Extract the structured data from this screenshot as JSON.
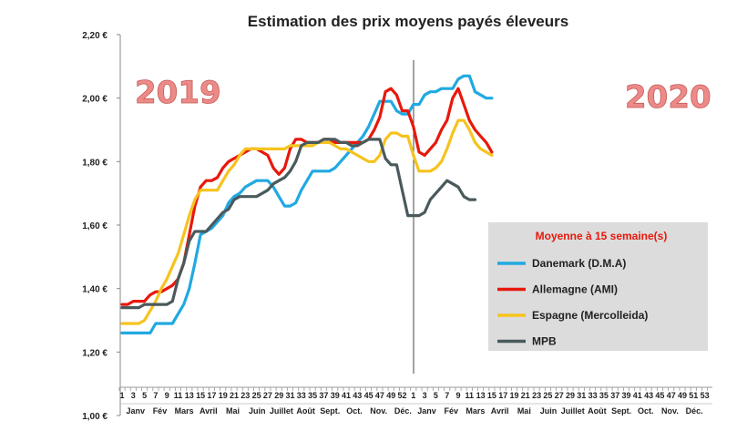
{
  "chart_data": {
    "type": "line",
    "title": "Estimation des prix moyens payés éleveurs",
    "ylim": [
      1.0,
      2.2
    ],
    "y_tick_labels": [
      "1,00 €",
      "1,20 €",
      "1,40 €",
      "1,60 €",
      "1,80 €",
      "2,00 €",
      "2,20 €"
    ],
    "x_tick_labels_2019": [
      "1",
      "3",
      "5",
      "7",
      "9",
      "11",
      "13",
      "15",
      "17",
      "19",
      "21",
      "23",
      "25",
      "27",
      "29",
      "31",
      "33",
      "35",
      "37",
      "39",
      "41",
      "43",
      "45",
      "47",
      "49",
      "52"
    ],
    "x_tick_labels_2020": [
      "1",
      "3",
      "5",
      "7",
      "9",
      "11",
      "13",
      "15",
      "17",
      "19",
      "21",
      "23",
      "25",
      "27",
      "29",
      "31",
      "33",
      "35",
      "37",
      "39",
      "41",
      "43",
      "45",
      "47",
      "49",
      "51",
      "53"
    ],
    "months_2019": [
      "Janv",
      "Fév",
      "Mars",
      "Avril",
      "Mai",
      "Juin",
      "Juillet",
      "Août",
      "Sept.",
      "Oct.",
      "Nov.",
      "Déc."
    ],
    "months_2020": [
      "Janv",
      "Fév",
      "Mars",
      "Avril",
      "Mai",
      "Juin",
      "Juillet",
      "Août",
      "Sept.",
      "Oct.",
      "Nov.",
      "Déc."
    ],
    "annotations": {
      "year_left": "2019",
      "year_right": "2020"
    },
    "legend": {
      "title": "Moyenne à  15 semaine(s)",
      "placement": "right"
    },
    "grid": false,
    "series": [
      {
        "name": "Danemark (D.M.A)",
        "color": "#21a9e1",
        "points": [
          [
            1,
            1.26
          ],
          [
            2,
            1.26
          ],
          [
            3,
            1.26
          ],
          [
            4,
            1.26
          ],
          [
            5,
            1.26
          ],
          [
            6,
            1.26
          ],
          [
            7,
            1.29
          ],
          [
            8,
            1.29
          ],
          [
            9,
            1.29
          ],
          [
            10,
            1.29
          ],
          [
            11,
            1.32
          ],
          [
            12,
            1.35
          ],
          [
            13,
            1.4
          ],
          [
            14,
            1.48
          ],
          [
            15,
            1.57
          ],
          [
            16,
            1.58
          ],
          [
            17,
            1.59
          ],
          [
            18,
            1.61
          ],
          [
            19,
            1.63
          ],
          [
            20,
            1.67
          ],
          [
            21,
            1.69
          ],
          [
            22,
            1.7
          ],
          [
            23,
            1.72
          ],
          [
            24,
            1.73
          ],
          [
            25,
            1.74
          ],
          [
            26,
            1.74
          ],
          [
            27,
            1.74
          ],
          [
            28,
            1.72
          ],
          [
            29,
            1.69
          ],
          [
            30,
            1.66
          ],
          [
            31,
            1.66
          ],
          [
            32,
            1.67
          ],
          [
            33,
            1.71
          ],
          [
            34,
            1.74
          ],
          [
            35,
            1.77
          ],
          [
            36,
            1.77
          ],
          [
            37,
            1.77
          ],
          [
            38,
            1.77
          ],
          [
            39,
            1.78
          ],
          [
            40,
            1.8
          ],
          [
            41,
            1.82
          ],
          [
            42,
            1.84
          ],
          [
            43,
            1.86
          ],
          [
            44,
            1.88
          ],
          [
            45,
            1.91
          ],
          [
            46,
            1.95
          ],
          [
            47,
            1.99
          ],
          [
            48,
            1.99
          ],
          [
            49,
            1.99
          ],
          [
            50,
            1.96
          ],
          [
            51,
            1.95
          ],
          [
            52,
            1.95
          ],
          [
            53,
            1.98
          ],
          [
            54,
            1.98
          ],
          [
            55,
            2.01
          ],
          [
            56,
            2.02
          ],
          [
            57,
            2.02
          ],
          [
            58,
            2.03
          ],
          [
            59,
            2.03
          ],
          [
            60,
            2.03
          ],
          [
            61,
            2.06
          ],
          [
            62,
            2.07
          ],
          [
            63,
            2.07
          ],
          [
            64,
            2.02
          ],
          [
            65,
            2.01
          ],
          [
            66,
            2.0
          ],
          [
            67,
            2.0
          ]
        ]
      },
      {
        "name": "Allemagne (AMI)",
        "color": "#e8180c",
        "points": [
          [
            1,
            1.35
          ],
          [
            2,
            1.35
          ],
          [
            3,
            1.36
          ],
          [
            4,
            1.36
          ],
          [
            5,
            1.36
          ],
          [
            6,
            1.38
          ],
          [
            7,
            1.39
          ],
          [
            8,
            1.39
          ],
          [
            9,
            1.4
          ],
          [
            10,
            1.41
          ],
          [
            11,
            1.43
          ],
          [
            12,
            1.48
          ],
          [
            13,
            1.57
          ],
          [
            14,
            1.66
          ],
          [
            15,
            1.72
          ],
          [
            16,
            1.74
          ],
          [
            17,
            1.74
          ],
          [
            18,
            1.75
          ],
          [
            19,
            1.78
          ],
          [
            20,
            1.8
          ],
          [
            21,
            1.81
          ],
          [
            22,
            1.82
          ],
          [
            23,
            1.83
          ],
          [
            24,
            1.84
          ],
          [
            25,
            1.84
          ],
          [
            26,
            1.83
          ],
          [
            27,
            1.82
          ],
          [
            28,
            1.78
          ],
          [
            29,
            1.76
          ],
          [
            30,
            1.78
          ],
          [
            31,
            1.84
          ],
          [
            32,
            1.87
          ],
          [
            33,
            1.87
          ],
          [
            34,
            1.86
          ],
          [
            35,
            1.86
          ],
          [
            36,
            1.86
          ],
          [
            37,
            1.87
          ],
          [
            38,
            1.87
          ],
          [
            39,
            1.86
          ],
          [
            40,
            1.86
          ],
          [
            41,
            1.86
          ],
          [
            42,
            1.86
          ],
          [
            43,
            1.86
          ],
          [
            44,
            1.86
          ],
          [
            45,
            1.87
          ],
          [
            46,
            1.9
          ],
          [
            47,
            1.94
          ],
          [
            48,
            2.02
          ],
          [
            49,
            2.03
          ],
          [
            50,
            2.01
          ],
          [
            51,
            1.96
          ],
          [
            52,
            1.96
          ],
          [
            53,
            1.91
          ],
          [
            54,
            1.83
          ],
          [
            55,
            1.82
          ],
          [
            56,
            1.84
          ],
          [
            57,
            1.86
          ],
          [
            58,
            1.9
          ],
          [
            59,
            1.93
          ],
          [
            60,
            2.0
          ],
          [
            61,
            2.03
          ],
          [
            62,
            1.98
          ],
          [
            63,
            1.93
          ],
          [
            64,
            1.9
          ],
          [
            65,
            1.88
          ],
          [
            66,
            1.86
          ],
          [
            67,
            1.83
          ]
        ]
      },
      {
        "name": "Espagne (Mercolleida)",
        "color": "#f6c31e",
        "points": [
          [
            1,
            1.29
          ],
          [
            2,
            1.29
          ],
          [
            3,
            1.29
          ],
          [
            4,
            1.29
          ],
          [
            5,
            1.3
          ],
          [
            6,
            1.33
          ],
          [
            7,
            1.36
          ],
          [
            8,
            1.4
          ],
          [
            9,
            1.43
          ],
          [
            10,
            1.47
          ],
          [
            11,
            1.51
          ],
          [
            12,
            1.57
          ],
          [
            13,
            1.63
          ],
          [
            14,
            1.68
          ],
          [
            15,
            1.71
          ],
          [
            16,
            1.71
          ],
          [
            17,
            1.71
          ],
          [
            18,
            1.71
          ],
          [
            19,
            1.74
          ],
          [
            20,
            1.77
          ],
          [
            21,
            1.79
          ],
          [
            22,
            1.82
          ],
          [
            23,
            1.84
          ],
          [
            24,
            1.84
          ],
          [
            25,
            1.84
          ],
          [
            26,
            1.84
          ],
          [
            27,
            1.84
          ],
          [
            28,
            1.84
          ],
          [
            29,
            1.84
          ],
          [
            30,
            1.84
          ],
          [
            31,
            1.85
          ],
          [
            32,
            1.85
          ],
          [
            33,
            1.85
          ],
          [
            34,
            1.85
          ],
          [
            35,
            1.85
          ],
          [
            36,
            1.86
          ],
          [
            37,
            1.86
          ],
          [
            38,
            1.86
          ],
          [
            39,
            1.85
          ],
          [
            40,
            1.84
          ],
          [
            41,
            1.84
          ],
          [
            42,
            1.83
          ],
          [
            43,
            1.82
          ],
          [
            44,
            1.81
          ],
          [
            45,
            1.8
          ],
          [
            46,
            1.8
          ],
          [
            47,
            1.82
          ],
          [
            48,
            1.87
          ],
          [
            49,
            1.89
          ],
          [
            50,
            1.89
          ],
          [
            51,
            1.88
          ],
          [
            52,
            1.88
          ],
          [
            53,
            1.82
          ],
          [
            54,
            1.77
          ],
          [
            55,
            1.77
          ],
          [
            56,
            1.77
          ],
          [
            57,
            1.78
          ],
          [
            58,
            1.8
          ],
          [
            59,
            1.84
          ],
          [
            60,
            1.89
          ],
          [
            61,
            1.93
          ],
          [
            62,
            1.93
          ],
          [
            63,
            1.9
          ],
          [
            64,
            1.86
          ],
          [
            65,
            1.84
          ],
          [
            66,
            1.83
          ],
          [
            67,
            1.82
          ]
        ]
      },
      {
        "name": "MPB",
        "color": "#4a5a5c",
        "points": [
          [
            1,
            1.34
          ],
          [
            2,
            1.34
          ],
          [
            3,
            1.34
          ],
          [
            4,
            1.34
          ],
          [
            5,
            1.35
          ],
          [
            6,
            1.35
          ],
          [
            7,
            1.35
          ],
          [
            8,
            1.35
          ],
          [
            9,
            1.35
          ],
          [
            10,
            1.36
          ],
          [
            11,
            1.43
          ],
          [
            12,
            1.48
          ],
          [
            13,
            1.55
          ],
          [
            14,
            1.58
          ],
          [
            15,
            1.58
          ],
          [
            16,
            1.58
          ],
          [
            17,
            1.6
          ],
          [
            18,
            1.62
          ],
          [
            19,
            1.64
          ],
          [
            20,
            1.65
          ],
          [
            21,
            1.68
          ],
          [
            22,
            1.69
          ],
          [
            23,
            1.69
          ],
          [
            24,
            1.69
          ],
          [
            25,
            1.69
          ],
          [
            26,
            1.7
          ],
          [
            27,
            1.71
          ],
          [
            28,
            1.73
          ],
          [
            29,
            1.74
          ],
          [
            30,
            1.75
          ],
          [
            31,
            1.77
          ],
          [
            32,
            1.8
          ],
          [
            33,
            1.85
          ],
          [
            34,
            1.86
          ],
          [
            35,
            1.86
          ],
          [
            36,
            1.86
          ],
          [
            37,
            1.87
          ],
          [
            38,
            1.87
          ],
          [
            39,
            1.87
          ],
          [
            40,
            1.86
          ],
          [
            41,
            1.86
          ],
          [
            42,
            1.85
          ],
          [
            43,
            1.85
          ],
          [
            44,
            1.86
          ],
          [
            45,
            1.87
          ],
          [
            46,
            1.87
          ],
          [
            47,
            1.87
          ],
          [
            48,
            1.81
          ],
          [
            49,
            1.79
          ],
          [
            50,
            1.79
          ],
          [
            51,
            1.71
          ],
          [
            52,
            1.63
          ],
          [
            53,
            1.63
          ],
          [
            54,
            1.63
          ],
          [
            55,
            1.64
          ],
          [
            56,
            1.68
          ],
          [
            57,
            1.7
          ],
          [
            58,
            1.72
          ],
          [
            59,
            1.74
          ],
          [
            60,
            1.73
          ],
          [
            61,
            1.72
          ],
          [
            62,
            1.69
          ],
          [
            63,
            1.68
          ],
          [
            64,
            1.68
          ]
        ]
      }
    ]
  }
}
